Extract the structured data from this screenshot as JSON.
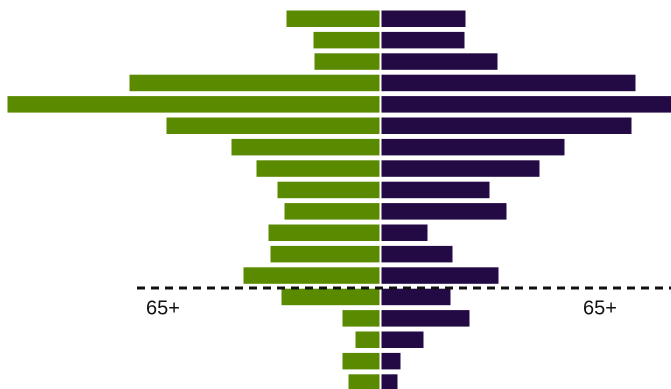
{
  "chart_data": {
    "type": "pyramid",
    "series": [
      {
        "color": "#5a8a00",
        "side": "left",
        "values": [
          93,
          66,
          65,
          250,
          372,
          213,
          148,
          123,
          102,
          95,
          111,
          109,
          136,
          98,
          37,
          24,
          37,
          31
        ]
      },
      {
        "color": "#230a45",
        "side": "right",
        "values": [
          84,
          83,
          116,
          254,
          290,
          250,
          183,
          158,
          108,
          125,
          46,
          71,
          117,
          69,
          88,
          42,
          19,
          16
        ]
      }
    ],
    "annotations": [
      "65+",
      "65+"
    ]
  }
}
